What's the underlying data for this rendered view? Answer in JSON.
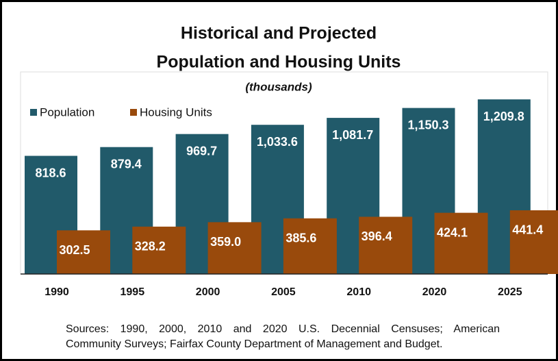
{
  "chart_data": {
    "type": "bar",
    "title": [
      "Historical and Projected",
      "Population and Housing Units"
    ],
    "subtitle": "(thousands)",
    "categories": [
      "1990",
      "1995",
      "2000",
      "2005",
      "2010",
      "2020",
      "2025"
    ],
    "series": [
      {
        "name": "Population",
        "color": "#215a6a",
        "values": [
          818.6,
          879.4,
          969.7,
          1033.6,
          1081.7,
          1150.3,
          1209.8
        ],
        "value_labels": [
          "818.6",
          "879.4",
          "969.7",
          "1,033.6",
          "1,081.7",
          "1,150.3",
          "1,209.8"
        ]
      },
      {
        "name": "Housing Units",
        "color": "#994a0c",
        "values": [
          302.5,
          328.2,
          359.0,
          385.6,
          396.4,
          424.1,
          441.4
        ],
        "value_labels": [
          "302.5",
          "328.2",
          "359.0",
          "385.6",
          "396.4",
          "424.1",
          "441.4"
        ]
      }
    ],
    "ylim": [
      0,
      1400
    ],
    "legend": "top-left",
    "sources": [
      "Sources: 1990, 2000, 2010 and 2020 U.S. Decennial Censuses; American",
      "Community Surveys; Fairfax County Department of Management and Budget."
    ]
  }
}
